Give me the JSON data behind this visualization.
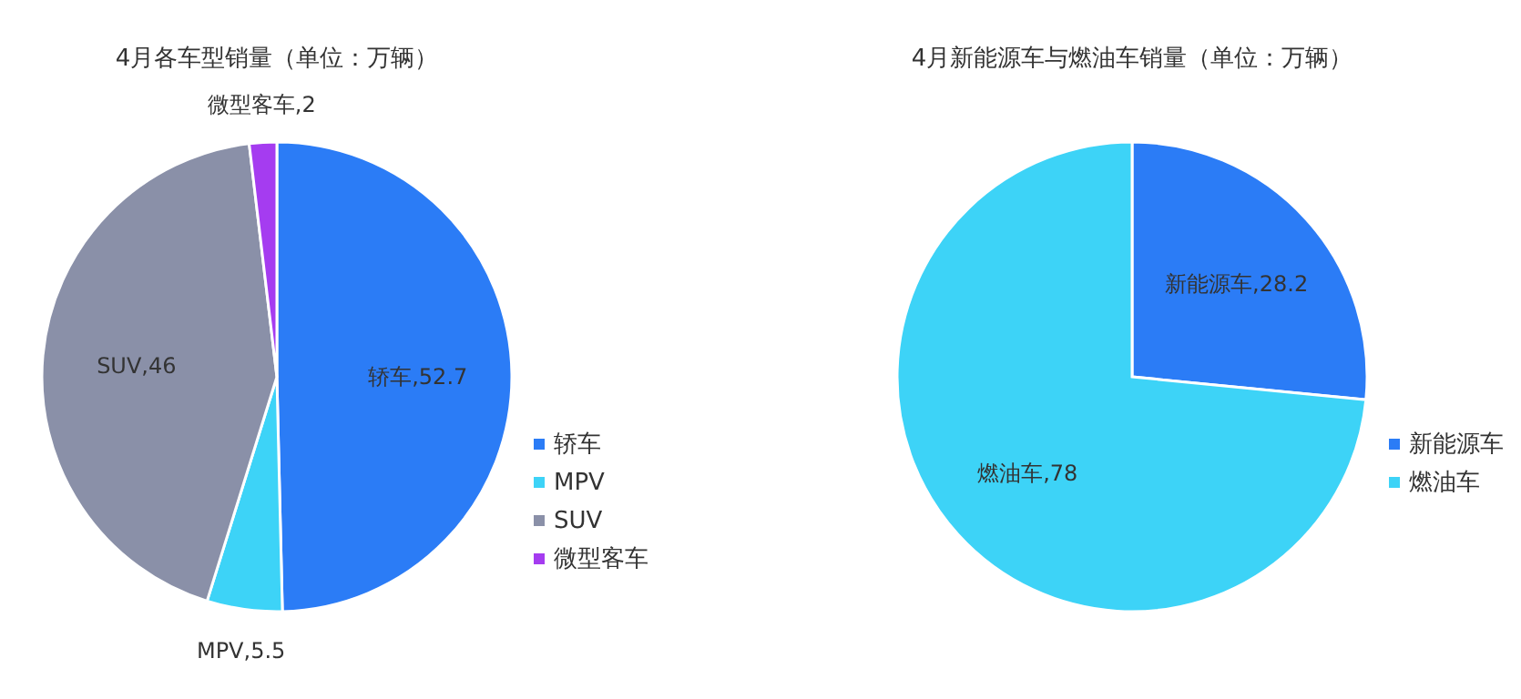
{
  "chart_data": [
    {
      "type": "pie",
      "title": "4月各车型销量（单位：万辆）",
      "categories": [
        "轿车",
        "MPV",
        "SUV",
        "微型客车"
      ],
      "values": [
        52.7,
        5.5,
        46,
        2
      ],
      "value_labels": [
        "轿车,52.7",
        "MPV,5.5",
        "SUV,46",
        "微型客车,2"
      ],
      "colors": [
        "#2b7cf6",
        "#3dd3f7",
        "#8a90a8",
        "#a53cf0"
      ],
      "legend": "bottom right"
    },
    {
      "type": "pie",
      "title": "4月新能源车与燃油车销量（单位：万辆）",
      "categories": [
        "新能源车",
        "燃油车"
      ],
      "values": [
        28.2,
        78
      ],
      "value_labels": [
        "新能源车,28.2",
        "燃油车,78"
      ],
      "colors": [
        "#2b7cf6",
        "#3dd3f7"
      ],
      "legend": "bottom right"
    }
  ]
}
